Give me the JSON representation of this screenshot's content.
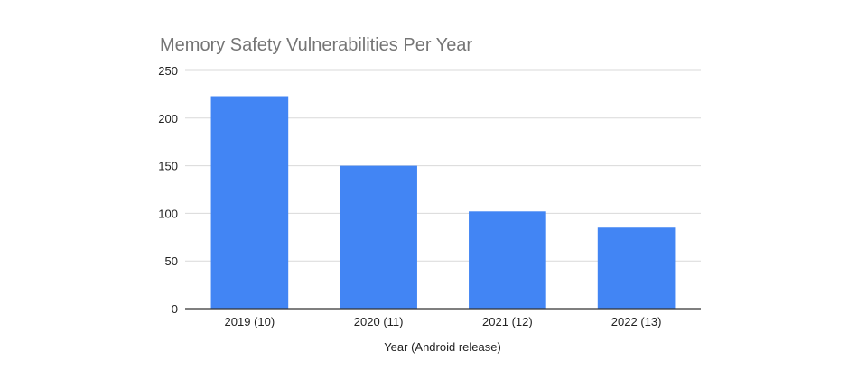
{
  "chart_data": {
    "type": "bar",
    "title": "Memory Safety Vulnerabilities Per Year",
    "xlabel": "Year (Android release)",
    "ylabel": "",
    "categories": [
      "2019 (10)",
      "2020 (11)",
      "2021 (12)",
      "2022 (13)"
    ],
    "values": [
      223,
      150,
      102,
      85
    ],
    "ylim": [
      0,
      250
    ],
    "yticks": [
      0,
      50,
      100,
      150,
      200,
      250
    ],
    "grid": true,
    "bar_color": "#4285f4",
    "gridline_color": "#d9d9d9",
    "title_color": "#757575"
  }
}
